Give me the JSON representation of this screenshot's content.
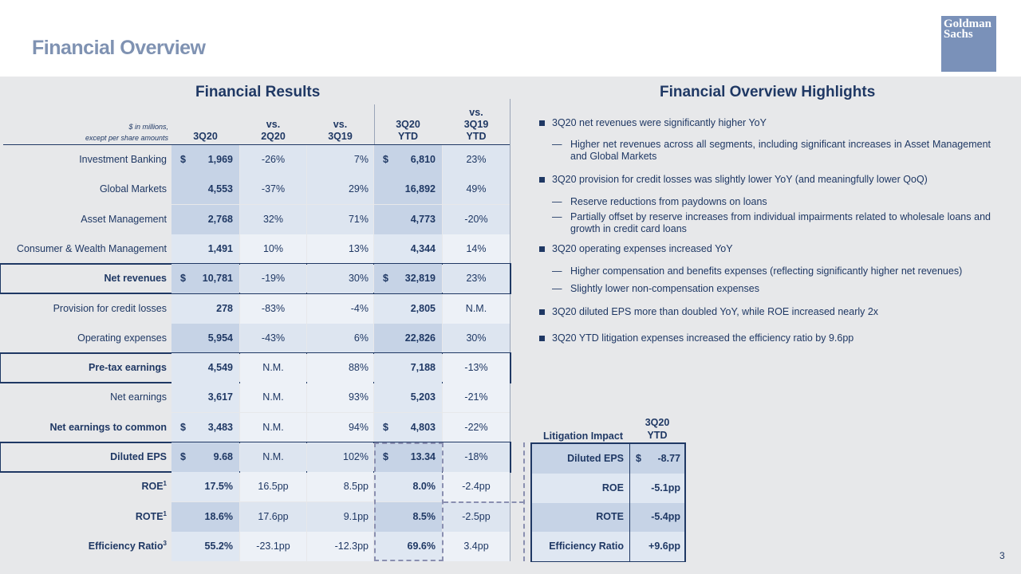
{
  "title": "Financial Overview",
  "logo": {
    "line1": "Goldman",
    "line2": "Sachs"
  },
  "results": {
    "section_title": "Financial Results",
    "units_line1": "$ in millions,",
    "units_line2": "except per share amounts",
    "columns": [
      {
        "l1": "",
        "l2": "",
        "l3": "3Q20"
      },
      {
        "l1": "",
        "l2": "vs.",
        "l3": "2Q20"
      },
      {
        "l1": "",
        "l2": "vs.",
        "l3": "3Q19"
      },
      {
        "l1": "",
        "l2": "3Q20",
        "l3": "YTD"
      },
      {
        "l1": "vs.",
        "l2": "3Q19",
        "l3": "YTD"
      }
    ],
    "rows": [
      {
        "label": "Investment Banking",
        "d1": "$",
        "v1": "1,969",
        "v2": "-26%",
        "v3": "7%",
        "d4": "$",
        "v4": "6,810",
        "v5": "23%",
        "sup": ""
      },
      {
        "label": "Global Markets",
        "d1": "",
        "v1": "4,553",
        "v2": "-37%",
        "v3": "29%",
        "d4": "",
        "v4": "16,892",
        "v5": "49%",
        "sup": ""
      },
      {
        "label": "Asset Management",
        "d1": "",
        "v1": "2,768",
        "v2": "32%",
        "v3": "71%",
        "d4": "",
        "v4": "4,773",
        "v5": "-20%",
        "sup": ""
      },
      {
        "label": "Consumer & Wealth Management",
        "d1": "",
        "v1": "1,491",
        "v2": "10%",
        "v3": "13%",
        "d4": "",
        "v4": "4,344",
        "v5": "14%",
        "sup": ""
      },
      {
        "label": "Net revenues",
        "d1": "$",
        "v1": "10,781",
        "v2": "-19%",
        "v3": "30%",
        "d4": "$",
        "v4": "32,819",
        "v5": "23%",
        "sup": ""
      },
      {
        "label": "Provision for credit losses",
        "d1": "",
        "v1": "278",
        "v2": "-83%",
        "v3": "-4%",
        "d4": "",
        "v4": "2,805",
        "v5": "N.M.",
        "sup": ""
      },
      {
        "label": "Operating expenses",
        "d1": "",
        "v1": "5,954",
        "v2": "-43%",
        "v3": "6%",
        "d4": "",
        "v4": "22,826",
        "v5": "30%",
        "sup": ""
      },
      {
        "label": "Pre-tax earnings",
        "d1": "",
        "v1": "4,549",
        "v2": "N.M.",
        "v3": "88%",
        "d4": "",
        "v4": "7,188",
        "v5": "-13%",
        "sup": ""
      },
      {
        "label": "Net earnings",
        "d1": "",
        "v1": "3,617",
        "v2": "N.M.",
        "v3": "93%",
        "d4": "",
        "v4": "5,203",
        "v5": "-21%",
        "sup": ""
      },
      {
        "label": "Net earnings to common",
        "d1": "$",
        "v1": "3,483",
        "v2": "N.M.",
        "v3": "94%",
        "d4": "$",
        "v4": "4,803",
        "v5": "-22%",
        "sup": ""
      },
      {
        "label": "Diluted EPS",
        "d1": "$",
        "v1": "9.68",
        "v2": "N.M.",
        "v3": "102%",
        "d4": "$",
        "v4": "13.34",
        "v5": "-18%",
        "sup": ""
      },
      {
        "label": "ROE",
        "d1": "",
        "v1": "17.5%",
        "v2": "16.5pp",
        "v3": "8.5pp",
        "d4": "",
        "v4": "8.0%",
        "v5": "-2.4pp",
        "sup": "1"
      },
      {
        "label": "ROTE",
        "d1": "",
        "v1": "18.6%",
        "v2": "17.6pp",
        "v3": "9.1pp",
        "d4": "",
        "v4": "8.5%",
        "v5": "-2.5pp",
        "sup": "1"
      },
      {
        "label": "Efficiency Ratio",
        "d1": "",
        "v1": "55.2%",
        "v2": "-23.1pp",
        "v3": "-12.3pp",
        "d4": "",
        "v4": "69.6%",
        "v5": "3.4pp",
        "sup": "3"
      }
    ]
  },
  "highlights": {
    "section_title": "Financial Overview Highlights",
    "dash": "—",
    "items": [
      {
        "text": "3Q20 net revenues were significantly higher YoY",
        "subs": [
          "Higher net revenues across all segments, including significant increases in Asset Management and Global Markets"
        ]
      },
      {
        "text": "3Q20 provision for credit losses was slightly lower YoY (and meaningfully lower QoQ)",
        "subs": [
          "Reserve reductions from paydowns on loans",
          "Partially offset by reserve increases from individual impairments related to wholesale loans and growth in credit card loans"
        ]
      },
      {
        "text": "3Q20 operating expenses increased YoY",
        "subs": [
          "Higher compensation and benefits expenses (reflecting significantly higher net revenues)",
          "Slightly lower non-compensation expenses"
        ]
      },
      {
        "text": "3Q20 diluted EPS more than doubled YoY, while ROE increased nearly 2x",
        "subs": []
      },
      {
        "text": "3Q20 YTD litigation expenses increased the efficiency ratio by 9.6pp",
        "subs": []
      }
    ]
  },
  "litigation": {
    "title": "Litigation Impact",
    "col_l1": "3Q20",
    "col_l2": "YTD",
    "rows": [
      {
        "label": "Diluted EPS",
        "dollar": "$",
        "value": "-8.77"
      },
      {
        "label": "ROE",
        "dollar": "",
        "value": "-5.1pp"
      },
      {
        "label": "ROTE",
        "dollar": "",
        "value": "-5.4pp"
      },
      {
        "label": "Efficiency Ratio",
        "dollar": "",
        "value": "+9.6pp"
      }
    ]
  },
  "page_number": "3"
}
